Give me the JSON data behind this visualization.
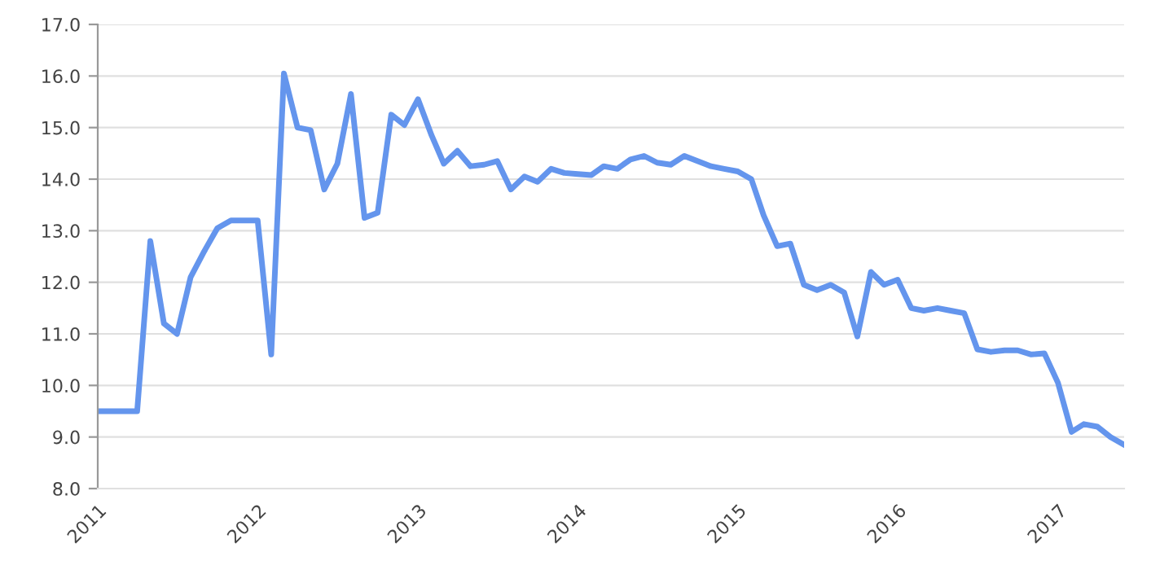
{
  "chart_data": {
    "type": "line",
    "x": [
      "2011-01",
      "2011-02",
      "2011-03",
      "2011-04",
      "2011-05",
      "2011-06",
      "2011-07",
      "2011-08",
      "2011-09",
      "2011-10",
      "2011-11",
      "2011-12",
      "2012-01",
      "2012-02",
      "2012-03",
      "2012-04",
      "2012-05",
      "2012-06",
      "2012-07",
      "2012-08",
      "2012-09",
      "2012-10",
      "2012-11",
      "2012-12",
      "2013-01",
      "2013-02",
      "2013-03",
      "2013-04",
      "2013-05",
      "2013-06",
      "2013-07",
      "2013-08",
      "2013-09",
      "2013-10",
      "2013-11",
      "2013-12",
      "2014-01",
      "2014-02",
      "2014-03",
      "2014-04",
      "2014-05",
      "2014-06",
      "2014-07",
      "2014-08",
      "2014-09",
      "2014-10",
      "2014-11",
      "2014-12",
      "2015-01",
      "2015-02",
      "2015-03",
      "2015-04",
      "2015-05",
      "2015-06",
      "2015-07",
      "2015-08",
      "2015-09",
      "2015-10",
      "2015-11",
      "2015-12",
      "2016-01",
      "2016-02",
      "2016-03",
      "2016-04",
      "2016-05",
      "2016-06",
      "2016-07",
      "2016-08",
      "2016-09",
      "2016-10",
      "2016-11",
      "2016-12",
      "2017-01",
      "2017-02",
      "2017-03",
      "2017-04",
      "2017-05",
      "2017-06"
    ],
    "series": [
      {
        "color": "#6495ed",
        "values": [
          9.5,
          9.5,
          9.5,
          9.5,
          12.8,
          11.2,
          11.0,
          12.1,
          12.6,
          13.05,
          13.2,
          13.2,
          13.2,
          10.6,
          16.05,
          15.0,
          14.95,
          13.8,
          14.3,
          15.65,
          13.25,
          13.35,
          15.25,
          15.05,
          15.55,
          14.85,
          14.3,
          14.55,
          14.25,
          14.28,
          14.35,
          13.8,
          14.05,
          13.95,
          14.2,
          14.12,
          14.1,
          14.08,
          14.25,
          14.2,
          14.38,
          14.45,
          14.32,
          14.28,
          14.45,
          14.35,
          14.25,
          14.2,
          14.15,
          14.0,
          13.3,
          12.7,
          12.75,
          11.95,
          11.85,
          11.95,
          11.8,
          10.95,
          12.2,
          11.95,
          12.05,
          11.5,
          11.45,
          11.5,
          11.45,
          11.4,
          10.7,
          10.65,
          10.68,
          10.68,
          10.6,
          10.62,
          10.05,
          9.1,
          9.25,
          9.2,
          9.0,
          8.85
        ]
      }
    ],
    "xlim": [
      "2011-01",
      "2017-06"
    ],
    "xticks": [
      {
        "value": "2011",
        "label": "2011"
      },
      {
        "value": "2012",
        "label": "2012"
      },
      {
        "value": "2013",
        "label": "2013"
      },
      {
        "value": "2014",
        "label": "2014"
      },
      {
        "value": "2015",
        "label": "2015"
      },
      {
        "value": "2016",
        "label": "2016"
      },
      {
        "value": "2017",
        "label": "2017"
      }
    ],
    "ylim": [
      8.0,
      17.0
    ],
    "yticks": [
      {
        "value": 8,
        "label": "8.0"
      },
      {
        "value": 9,
        "label": "9.0"
      },
      {
        "value": 10,
        "label": "10.0"
      },
      {
        "value": 11,
        "label": "11.0"
      },
      {
        "value": 12,
        "label": "12.0"
      },
      {
        "value": 13,
        "label": "13.0"
      },
      {
        "value": 14,
        "label": "14.0"
      },
      {
        "value": 15,
        "label": "15.0"
      },
      {
        "value": 16,
        "label": "16.0"
      },
      {
        "value": 17,
        "label": "17.0"
      }
    ],
    "grid": "y",
    "marker": "none",
    "line_style": "solid"
  }
}
